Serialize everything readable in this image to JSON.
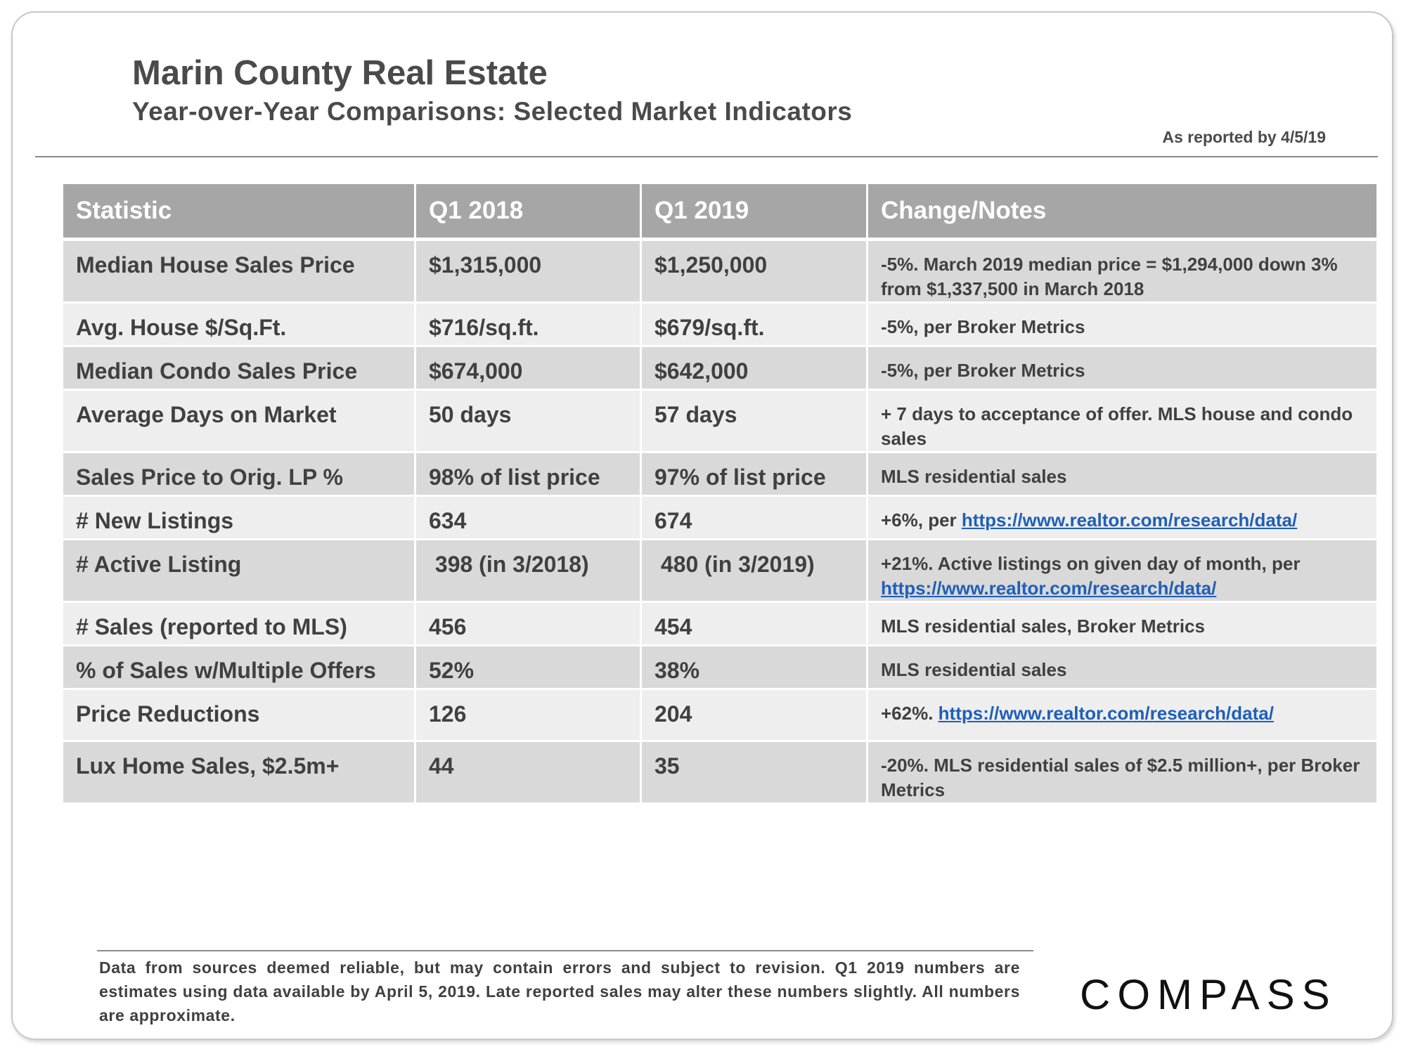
{
  "header": {
    "title": "Marin County Real Estate",
    "subtitle": "Year-over-Year  Comparisons:  Selected Market  Indicators",
    "reported": "As reported by 4/5/19"
  },
  "table": {
    "columns": [
      "Statistic",
      "Q1 2018",
      "Q1 2019",
      "Change/Notes"
    ],
    "rows": [
      {
        "statistic": "Median House Sales Price",
        "q1_2018": "$1,315,000",
        "q1_2019": "$1,250,000",
        "note": "-5%. March 2019  median price = $1,294,000  down 3% from $1,337,500  in March 2018"
      },
      {
        "statistic": "Avg. House $/Sq.Ft.",
        "q1_2018": "$716/sq.ft.",
        "q1_2019": "$679/sq.ft.",
        "note": "-5%, per Broker Metrics"
      },
      {
        "statistic": "Median Condo  Sales Price",
        "q1_2018": "$674,000",
        "q1_2019": "$642,000",
        "note": "-5%, per Broker Metrics"
      },
      {
        "statistic": "Average Days on Market",
        "q1_2018": "50 days",
        "q1_2019": "57 days",
        "note": "+ 7 days to acceptance of offer. MLS house and condo sales"
      },
      {
        "statistic": "Sales Price to Orig. LP %",
        "q1_2018": "98% of list price",
        "q1_2019": "97% of list price",
        "note": "MLS residential sales"
      },
      {
        "statistic": "# New Listings",
        "q1_2018": "634",
        "q1_2019": "674",
        "note": "+6%, per ",
        "link": "https://www.realtor.com/research/data/"
      },
      {
        "statistic": "# Active Listing",
        "q1_2018": " 398 (in 3/2018)",
        "q1_2019": " 480 (in 3/2019)",
        "note": "+21%. Active listings on given day of month, per ",
        "link": "https://www.realtor.com/research/data/"
      },
      {
        "statistic": "# Sales (reported to MLS)",
        "q1_2018": "456",
        "q1_2019": "454",
        "note": "MLS residential sales, Broker Metrics"
      },
      {
        "statistic": "% of Sales w/Multiple  Offers",
        "q1_2018": "52%",
        "q1_2019": "38%",
        "note": "MLS residential sales"
      },
      {
        "statistic": "Price Reductions",
        "q1_2018": "126",
        "q1_2019": "204",
        "note": "+62%. ",
        "link": "https://www.realtor.com/research/data/"
      },
      {
        "statistic": "Lux Home Sales, $2.5m+",
        "q1_2018": "44",
        "q1_2019": "35",
        "note": "-20%. MLS residential sales of $2.5  million+, per Broker Metrics"
      }
    ]
  },
  "footer": {
    "disclaimer": "Data from sources deemed reliable, but may contain errors and subject to revision. Q1 2019 numbers are estimates using data available by April 5, 2019. Late reported sales may alter these numbers slightly. All numbers are approximate.",
    "logo_text": "COMPASS"
  },
  "colors": {
    "header_bg": "#a6a6a6",
    "row_dark": "#d9d9d9",
    "row_light": "#eeeeee",
    "link": "#1f5fb8",
    "text": "#404040"
  }
}
